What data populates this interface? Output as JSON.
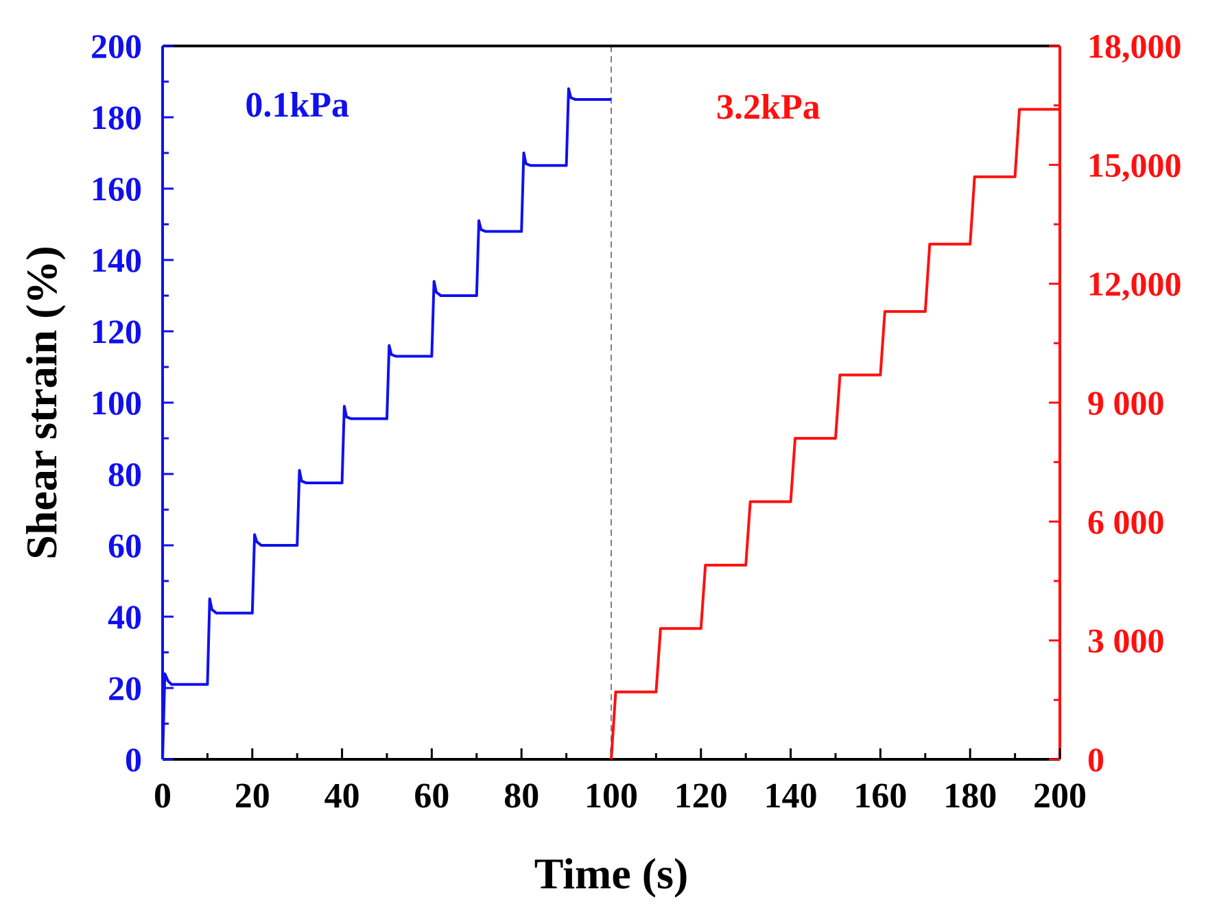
{
  "chart_data": {
    "type": "line",
    "xlabel": "Time (s)",
    "ylabel_left": "Shear strain (%)",
    "ylabel_right": "",
    "xlim": [
      0,
      200
    ],
    "ylim_left": [
      0,
      200
    ],
    "ylim_right": [
      0,
      18000
    ],
    "x_ticks": [
      "0",
      "20",
      "40",
      "60",
      "80",
      "100",
      "120",
      "140",
      "160",
      "180",
      "200"
    ],
    "y_left_ticks": [
      "0",
      "20",
      "40",
      "60",
      "80",
      "100",
      "120",
      "140",
      "160",
      "180",
      "200"
    ],
    "y_right_ticks": [
      "0",
      "3 000",
      "6 000",
      "9 000",
      "12,000",
      "15,000",
      "18,000"
    ],
    "divider_x": 100,
    "colors": {
      "left": "#1010ee",
      "right": "#ff1010",
      "axis": "#000000",
      "divider": "#808080"
    },
    "annotations": [
      {
        "text": "0.1kPa",
        "series": "left"
      },
      {
        "text": "3.2kPa",
        "series": "right"
      }
    ],
    "series": [
      {
        "name": "0.1kPa",
        "axis": "left",
        "x": [
          0,
          0.5,
          1.2,
          2,
          10,
          10.5,
          11,
          12,
          20,
          20.5,
          21,
          22,
          30,
          30.5,
          31,
          32,
          40,
          40.5,
          41,
          42,
          50,
          50.5,
          51,
          52,
          60,
          60.5,
          61,
          62,
          70,
          70.5,
          71,
          72,
          80,
          80.5,
          81,
          82,
          90,
          90.5,
          91,
          92,
          100
        ],
        "y": [
          0,
          24,
          22,
          21,
          21,
          45,
          42,
          41,
          41,
          63,
          61,
          60,
          60,
          81,
          78,
          77.5,
          77.5,
          99,
          96,
          95.5,
          95.5,
          116,
          113.5,
          113,
          113,
          134,
          131,
          130,
          130,
          151,
          148.5,
          148,
          148,
          170,
          167,
          166.5,
          166.5,
          188,
          185.5,
          185,
          185
        ]
      },
      {
        "name": "3.2kPa",
        "axis": "right",
        "x": [
          100,
          101,
          110,
          111,
          120,
          121,
          130,
          131,
          140,
          141,
          150,
          151,
          160,
          161,
          170,
          171,
          180,
          181,
          190,
          191,
          200
        ],
        "y": [
          0,
          1700,
          1700,
          3300,
          3300,
          4900,
          4900,
          6500,
          6500,
          8100,
          8100,
          9700,
          9700,
          11300,
          11300,
          13000,
          13000,
          14700,
          14700,
          16400,
          16400
        ]
      }
    ]
  }
}
